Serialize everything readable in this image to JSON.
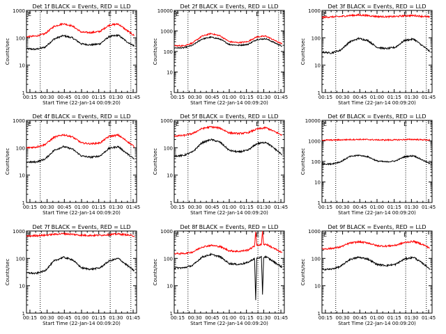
{
  "figure": {
    "panel_titles": [
      "Det 1f BLACK = Events, RED = LLD",
      "Det 2f BLACK = Events, RED = LLD",
      "Det 3f BLACK = Events, RED = LLD",
      "Det 4f BLACK = Events, RED = LLD",
      "Det 5f BLACK = Events, RED = LLD",
      "Det 6f BLACK = Events, RED = LLD",
      "Det 7f BLACK = Events, RED = LLD",
      "Det 8f BLACK = Events, RED = LLD",
      "Det 9f BLACK = Events, RED = LLD"
    ],
    "ylabel": "Counts/sec",
    "xlabel": "Start Time (22-Jan-14 00:09:20)",
    "x_ticks": [
      "00:15",
      "00:30",
      "00:45",
      "01:00",
      "01:15",
      "01:30",
      "01:45"
    ],
    "y_ticks": [
      "1",
      "10",
      "100",
      "1000",
      "10000"
    ],
    "marker_labels": [
      "E",
      "E"
    ]
  },
  "colors": {
    "events": "#000000",
    "lld": "#ff0000",
    "axes": "#000000",
    "background": "#ffffff"
  },
  "chart_data": [
    {
      "type": "line",
      "title": "Det 1f BLACK = Events, RED = LLD",
      "xlabel": "Start Time (22-Jan-14 00:09:20)",
      "ylabel": "Counts/sec",
      "x_unit": "minutes after 00:00 on 22-Jan-14",
      "xlim": [
        "00:12",
        "01:48"
      ],
      "ylim": [
        1,
        1000
      ],
      "yscale": "log",
      "event_markers": [
        "00:24",
        "01:25",
        "01:43"
      ],
      "series": [
        {
          "name": "Events",
          "x": [
            "00:12",
            "00:20",
            "00:28",
            "00:36",
            "00:44",
            "00:52",
            "01:00",
            "01:08",
            "01:16",
            "01:24",
            "01:32",
            "01:40",
            "01:46"
          ],
          "y": [
            40,
            38,
            45,
            90,
            120,
            100,
            60,
            55,
            60,
            110,
            125,
            70,
            50
          ]
        },
        {
          "name": "LLD",
          "x": [
            "00:12",
            "00:20",
            "00:28",
            "00:36",
            "00:44",
            "00:52",
            "01:00",
            "01:08",
            "01:16",
            "01:24",
            "01:32",
            "01:40",
            "01:46"
          ],
          "y": [
            110,
            115,
            140,
            260,
            330,
            270,
            160,
            155,
            170,
            290,
            320,
            180,
            120
          ]
        }
      ]
    },
    {
      "type": "line",
      "title": "Det 2f BLACK = Events, RED = LLD",
      "xlabel": "Start Time (22-Jan-14 00:09:20)",
      "ylabel": "Counts/sec",
      "x_unit": "minutes after 00:00 on 22-Jan-14",
      "xlim": [
        "00:12",
        "01:48"
      ],
      "ylim": [
        1,
        10000
      ],
      "yscale": "log",
      "event_markers": [
        "00:24",
        "01:25",
        "01:43"
      ],
      "series": [
        {
          "name": "Events",
          "x": [
            "00:12",
            "00:20",
            "00:28",
            "00:36",
            "00:44",
            "00:52",
            "01:00",
            "01:08",
            "01:16",
            "01:24",
            "01:32",
            "01:40",
            "01:46"
          ],
          "y": [
            150,
            150,
            200,
            400,
            500,
            400,
            220,
            200,
            220,
            380,
            420,
            260,
            180
          ]
        },
        {
          "name": "LLD",
          "x": [
            "00:12",
            "00:20",
            "00:28",
            "00:36",
            "00:44",
            "00:52",
            "01:00",
            "01:08",
            "01:16",
            "01:24",
            "01:32",
            "01:40",
            "01:46"
          ],
          "y": [
            190,
            190,
            260,
            550,
            750,
            580,
            300,
            270,
            300,
            520,
            560,
            340,
            230
          ]
        }
      ]
    },
    {
      "type": "line",
      "title": "Det 3f BLACK = Events, RED = LLD",
      "xlabel": "Start Time (22-Jan-14 00:09:20)",
      "ylabel": "Counts/sec",
      "x_unit": "minutes after 00:00 on 22-Jan-14",
      "xlim": [
        "00:12",
        "01:48"
      ],
      "ylim": [
        1,
        1000
      ],
      "yscale": "log",
      "event_markers": [
        "00:24",
        "01:25",
        "01:43"
      ],
      "series": [
        {
          "name": "Events",
          "x": [
            "00:12",
            "00:20",
            "00:28",
            "00:36",
            "00:44",
            "00:52",
            "01:00",
            "01:08",
            "01:16",
            "01:24",
            "01:32",
            "01:40",
            "01:46"
          ],
          "y": [
            30,
            28,
            35,
            70,
            95,
            80,
            45,
            40,
            45,
            80,
            90,
            50,
            32
          ]
        },
        {
          "name": "LLD",
          "x": [
            "00:12",
            "00:20",
            "00:28",
            "00:36",
            "00:44",
            "00:52",
            "01:00",
            "01:08",
            "01:16",
            "01:24",
            "01:32",
            "01:40",
            "01:46"
          ],
          "y": [
            560,
            580,
            600,
            650,
            680,
            650,
            600,
            590,
            600,
            640,
            650,
            610,
            570
          ]
        }
      ]
    },
    {
      "type": "line",
      "title": "Det 4f BLACK = Events, RED = LLD",
      "xlabel": "Start Time (22-Jan-14 00:09:20)",
      "ylabel": "Counts/sec",
      "x_unit": "minutes after 00:00 on 22-Jan-14",
      "xlim": [
        "00:12",
        "01:48"
      ],
      "ylim": [
        1,
        1000
      ],
      "yscale": "log",
      "event_markers": [
        "00:24",
        "01:25",
        "01:43"
      ],
      "series": [
        {
          "name": "Events",
          "x": [
            "00:12",
            "00:20",
            "00:28",
            "00:36",
            "00:44",
            "00:52",
            "01:00",
            "01:08",
            "01:16",
            "01:24",
            "01:32",
            "01:40",
            "01:46"
          ],
          "y": [
            30,
            30,
            38,
            80,
            110,
            90,
            50,
            45,
            50,
            95,
            110,
            60,
            38
          ]
        },
        {
          "name": "LLD",
          "x": [
            "00:12",
            "00:20",
            "00:28",
            "00:36",
            "00:44",
            "00:52",
            "01:00",
            "01:08",
            "01:16",
            "01:24",
            "01:32",
            "01:40",
            "01:46"
          ],
          "y": [
            100,
            105,
            130,
            240,
            300,
            250,
            150,
            140,
            150,
            260,
            290,
            170,
            110
          ]
        }
      ]
    },
    {
      "type": "line",
      "title": "Det 5f BLACK = Events, RED = LLD",
      "xlabel": "Start Time (22-Jan-14 00:09:20)",
      "ylabel": "Counts/sec",
      "x_unit": "minutes after 00:00 on 22-Jan-14",
      "xlim": [
        "00:12",
        "01:48"
      ],
      "ylim": [
        1,
        1000
      ],
      "yscale": "log",
      "event_markers": [
        "00:24",
        "01:25",
        "01:43"
      ],
      "series": [
        {
          "name": "Events",
          "x": [
            "00:12",
            "00:20",
            "00:28",
            "00:36",
            "00:44",
            "00:52",
            "01:00",
            "01:08",
            "01:16",
            "01:24",
            "01:32",
            "01:40",
            "01:46"
          ],
          "y": [
            50,
            52,
            70,
            150,
            200,
            160,
            80,
            70,
            80,
            140,
            160,
            90,
            55
          ]
        },
        {
          "name": "LLD",
          "x": [
            "00:12",
            "00:20",
            "00:28",
            "00:36",
            "00:44",
            "00:52",
            "01:00",
            "01:08",
            "01:16",
            "01:24",
            "01:32",
            "01:40",
            "01:46"
          ],
          "y": [
            270,
            280,
            330,
            500,
            580,
            520,
            350,
            330,
            350,
            480,
            540,
            380,
            290
          ]
        }
      ]
    },
    {
      "type": "line",
      "title": "Det 6f BLACK = Events, RED = LLD",
      "xlabel": "Start Time (22-Jan-14 00:09:20)",
      "ylabel": "Counts/sec",
      "x_unit": "minutes after 00:00 on 22-Jan-14",
      "xlim": [
        "00:12",
        "01:48"
      ],
      "ylim": [
        1,
        10000
      ],
      "yscale": "log",
      "event_markers": [
        "00:24",
        "01:25",
        "01:43"
      ],
      "series": [
        {
          "name": "Events",
          "x": [
            "00:12",
            "00:20",
            "00:28",
            "00:36",
            "00:44",
            "00:52",
            "01:00",
            "01:08",
            "01:16",
            "01:24",
            "01:32",
            "01:40",
            "01:46"
          ],
          "y": [
            75,
            75,
            95,
            170,
            200,
            170,
            105,
            95,
            105,
            170,
            190,
            115,
            78
          ]
        },
        {
          "name": "LLD",
          "x": [
            "00:12",
            "00:20",
            "00:28",
            "00:36",
            "00:44",
            "00:52",
            "01:00",
            "01:08",
            "01:16",
            "01:24",
            "01:32",
            "01:40",
            "01:46"
          ],
          "y": [
            1100,
            1100,
            1120,
            1160,
            1180,
            1160,
            1120,
            1110,
            1120,
            1160,
            1180,
            1140,
            1100
          ]
        }
      ]
    },
    {
      "type": "line",
      "title": "Det 7f BLACK = Events, RED = LLD",
      "xlabel": "Start Time (22-Jan-14 00:09:20)",
      "ylabel": "Counts/sec",
      "x_unit": "minutes after 00:00 on 22-Jan-14",
      "xlim": [
        "00:12",
        "01:48"
      ],
      "ylim": [
        1,
        1000
      ],
      "yscale": "log",
      "event_markers": [
        "00:24",
        "01:25",
        "01:43"
      ],
      "series": [
        {
          "name": "Events",
          "x": [
            "00:12",
            "00:20",
            "00:28",
            "00:36",
            "00:44",
            "00:52",
            "01:00",
            "01:08",
            "01:16",
            "01:24",
            "01:32",
            "01:40",
            "01:46"
          ],
          "y": [
            30,
            28,
            35,
            80,
            110,
            90,
            45,
            40,
            45,
            80,
            100,
            55,
            35
          ]
        },
        {
          "name": "LLD",
          "x": [
            "00:12",
            "00:20",
            "00:28",
            "00:36",
            "00:44",
            "00:52",
            "01:00",
            "01:08",
            "01:16",
            "01:24",
            "01:32",
            "01:40",
            "01:46"
          ],
          "y": [
            650,
            680,
            700,
            760,
            800,
            760,
            700,
            690,
            700,
            740,
            780,
            720,
            660
          ]
        }
      ]
    },
    {
      "type": "line",
      "title": "Det 8f BLACK = Events, RED = LLD",
      "xlabel": "Start Time (22-Jan-14 00:09:20)",
      "ylabel": "Counts/sec",
      "x_unit": "minutes after 00:00 on 22-Jan-14",
      "xlim": [
        "00:12",
        "01:48"
      ],
      "ylim": [
        1,
        1000
      ],
      "yscale": "log",
      "event_markers": [
        "00:24",
        "01:25",
        "01:43"
      ],
      "series": [
        {
          "name": "Events",
          "x": [
            "00:12",
            "00:20",
            "00:28",
            "00:36",
            "00:44",
            "00:52",
            "01:00",
            "01:08",
            "01:16",
            "01:22",
            "01:23",
            "01:24",
            "01:28",
            "01:29",
            "01:30",
            "01:32",
            "01:40",
            "01:46"
          ],
          "y": [
            45,
            45,
            55,
            110,
            140,
            115,
            65,
            60,
            70,
            100,
            3,
            100,
            110,
            5,
            110,
            115,
            70,
            48
          ]
        },
        {
          "name": "LLD",
          "x": [
            "00:12",
            "00:20",
            "00:28",
            "00:36",
            "00:44",
            "00:52",
            "01:00",
            "01:08",
            "01:16",
            "01:22",
            "01:23",
            "01:24",
            "01:28",
            "01:29",
            "01:30",
            "01:32",
            "01:40",
            "01:46"
          ],
          "y": [
            150,
            150,
            170,
            260,
            300,
            270,
            190,
            180,
            200,
            280,
            1000,
            300,
            320,
            1000,
            320,
            330,
            220,
            160
          ]
        }
      ]
    },
    {
      "type": "line",
      "title": "Det 9f BLACK = Events, RED = LLD",
      "xlabel": "Start Time (22-Jan-14 00:09:20)",
      "ylabel": "Counts/sec",
      "x_unit": "minutes after 00:00 on 22-Jan-14",
      "xlim": [
        "00:12",
        "01:48"
      ],
      "ylim": [
        1,
        1000
      ],
      "yscale": "log",
      "event_markers": [
        "00:24",
        "01:25",
        "01:43"
      ],
      "series": [
        {
          "name": "Events",
          "x": [
            "00:12",
            "00:20",
            "00:28",
            "00:36",
            "00:44",
            "00:52",
            "01:00",
            "01:08",
            "01:16",
            "01:24",
            "01:32",
            "01:40",
            "01:46"
          ],
          "y": [
            40,
            40,
            50,
            90,
            110,
            95,
            60,
            55,
            60,
            95,
            110,
            65,
            42
          ]
        },
        {
          "name": "LLD",
          "x": [
            "00:12",
            "00:20",
            "00:28",
            "00:36",
            "00:44",
            "00:52",
            "01:00",
            "01:08",
            "01:16",
            "01:24",
            "01:32",
            "01:40",
            "01:46"
          ],
          "y": [
            220,
            230,
            260,
            360,
            400,
            370,
            290,
            280,
            300,
            380,
            420,
            320,
            240
          ]
        }
      ]
    }
  ]
}
